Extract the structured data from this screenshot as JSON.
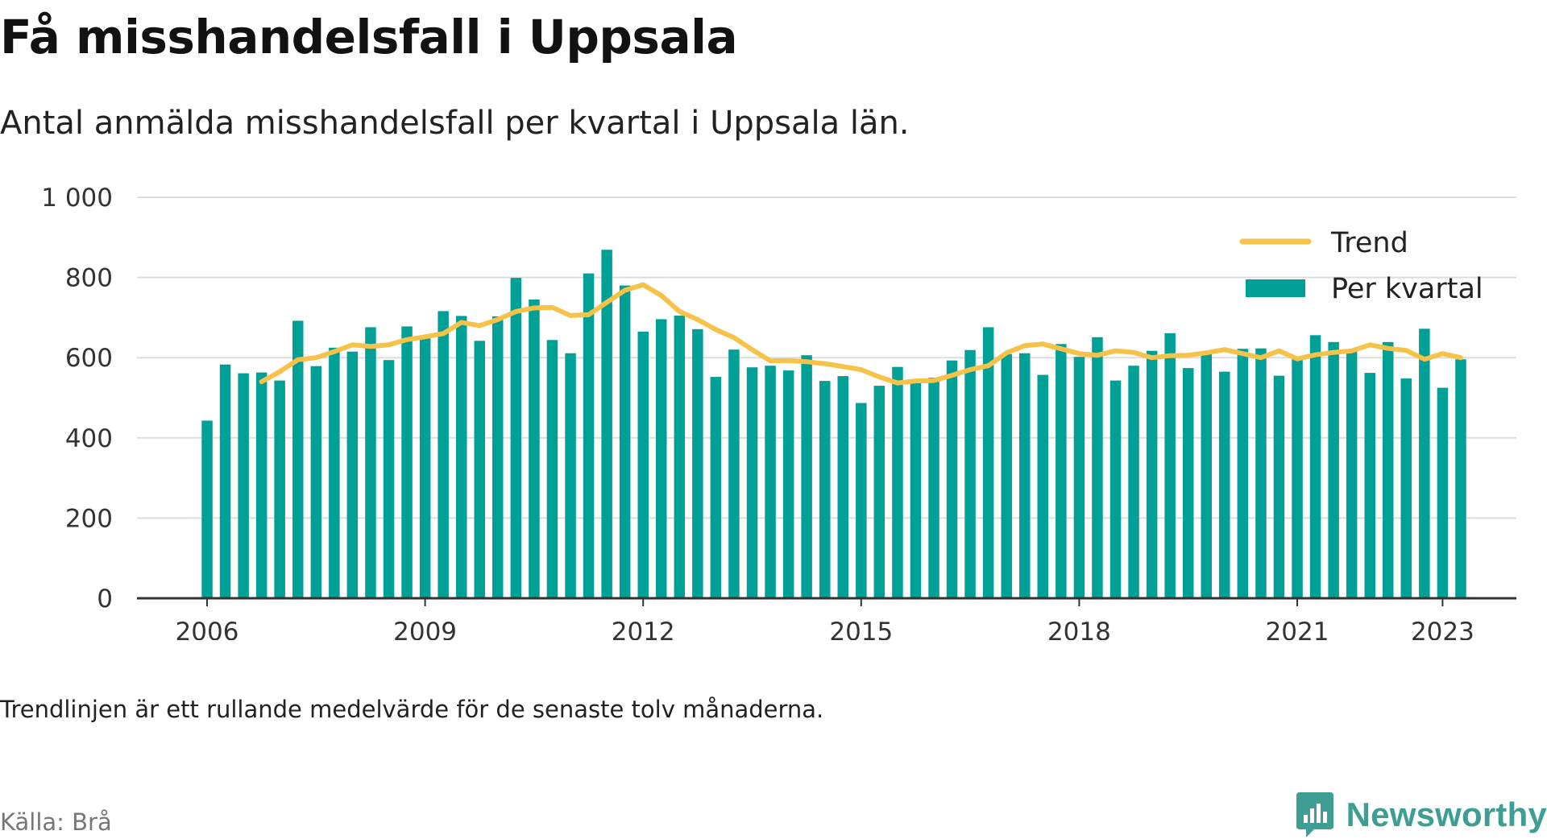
{
  "title": "Få misshandelsfall i Uppsala",
  "subtitle": "Antal anmälda misshandelsfall per kvartal i Uppsala län.",
  "note": "Trendlinjen är ett rullande medelvärde för de senaste tolv månaderna.",
  "source": "Källa: Brå",
  "brand": "Newsworthy",
  "colors": {
    "bars": "#00a096",
    "trend": "#f7c24a",
    "grid": "#dddddd",
    "axis": "#333333",
    "brand": "#3e9e93"
  },
  "chart_data": {
    "type": "bar",
    "title": "Få misshandelsfall i Uppsala",
    "xlabel": "",
    "ylabel": "",
    "ylim": [
      0,
      1000
    ],
    "y_ticks": [
      0,
      200,
      400,
      600,
      800,
      1000
    ],
    "y_tick_labels": [
      "0",
      "200",
      "400",
      "600",
      "800",
      "1 000"
    ],
    "x_ticks": [
      2006,
      2009,
      2012,
      2015,
      2018,
      2021,
      2023
    ],
    "x_tick_labels": [
      "2006",
      "2009",
      "2012",
      "2015",
      "2018",
      "2021",
      "2023"
    ],
    "grid": true,
    "legend_position": "top-right",
    "series": [
      {
        "name": "Per kvartal",
        "type": "bar",
        "x": [
          "2006 K1",
          "2006 K2",
          "2006 K3",
          "2006 K4",
          "2007 K1",
          "2007 K2",
          "2007 K3",
          "2007 K4",
          "2008 K1",
          "2008 K2",
          "2008 K3",
          "2008 K4",
          "2009 K1",
          "2009 K2",
          "2009 K3",
          "2009 K4",
          "2010 K1",
          "2010 K2",
          "2010 K3",
          "2010 K4",
          "2011 K1",
          "2011 K2",
          "2011 K3",
          "2011 K4",
          "2012 K1",
          "2012 K2",
          "2012 K3",
          "2012 K4",
          "2013 K1",
          "2013 K2",
          "2013 K3",
          "2013 K4",
          "2014 K1",
          "2014 K2",
          "2014 K3",
          "2014 K4",
          "2015 K1",
          "2015 K2",
          "2015 K3",
          "2015 K4",
          "2016 K1",
          "2016 K2",
          "2016 K3",
          "2016 K4",
          "2017 K1",
          "2017 K2",
          "2017 K3",
          "2017 K4",
          "2018 K1",
          "2018 K2",
          "2018 K3",
          "2018 K4",
          "2019 K1",
          "2019 K2",
          "2019 K3",
          "2019 K4",
          "2020 K1",
          "2020 K2",
          "2020 K3",
          "2020 K4",
          "2021 K1",
          "2021 K2",
          "2021 K3",
          "2021 K4",
          "2022 K1",
          "2022 K2",
          "2022 K3",
          "2022 K4",
          "2023 K1",
          "2023 K2"
        ],
        "values": [
          443,
          583,
          561,
          563,
          543,
          692,
          579,
          625,
          615,
          676,
          594,
          678,
          652,
          716,
          704,
          642,
          703,
          799,
          745,
          644,
          611,
          810,
          869,
          780,
          665,
          696,
          705,
          671,
          552,
          620,
          576,
          580,
          568,
          606,
          542,
          554,
          487,
          530,
          577,
          540,
          550,
          593,
          619,
          676,
          609,
          611,
          557,
          634,
          602,
          651,
          543,
          580,
          617,
          661,
          574,
          613,
          565,
          622,
          623,
          555,
          600,
          656,
          639,
          616,
          562,
          639,
          548,
          672,
          525,
          596
        ]
      },
      {
        "name": "Trend",
        "type": "line",
        "x": [
          "2006 K4",
          "2007 K1",
          "2007 K2",
          "2007 K3",
          "2007 K4",
          "2008 K1",
          "2008 K2",
          "2008 K3",
          "2008 K4",
          "2009 K1",
          "2009 K2",
          "2009 K3",
          "2009 K4",
          "2010 K1",
          "2010 K2",
          "2010 K3",
          "2010 K4",
          "2011 K1",
          "2011 K2",
          "2011 K3",
          "2011 K4",
          "2012 K1",
          "2012 K2",
          "2012 K3",
          "2012 K4",
          "2013 K1",
          "2013 K2",
          "2013 K3",
          "2013 K4",
          "2014 K1",
          "2014 K2",
          "2014 K3",
          "2014 K4",
          "2015 K1",
          "2015 K2",
          "2015 K3",
          "2015 K4",
          "2016 K1",
          "2016 K2",
          "2016 K3",
          "2016 K4",
          "2017 K1",
          "2017 K2",
          "2017 K3",
          "2017 K4",
          "2018 K1",
          "2018 K2",
          "2018 K3",
          "2018 K4",
          "2019 K1",
          "2019 K2",
          "2019 K3",
          "2019 K4",
          "2020 K1",
          "2020 K2",
          "2020 K3",
          "2020 K4",
          "2021 K1",
          "2021 K2",
          "2021 K3",
          "2021 K4",
          "2022 K1",
          "2022 K2",
          "2022 K3",
          "2022 K4",
          "2023 K1",
          "2023 K2"
        ],
        "values": [
          540,
          565,
          595,
          600,
          615,
          632,
          628,
          632,
          645,
          652,
          660,
          688,
          680,
          695,
          715,
          724,
          725,
          705,
          707,
          738,
          768,
          782,
          755,
          715,
          695,
          670,
          650,
          620,
          592,
          593,
          590,
          585,
          578,
          570,
          552,
          537,
          542,
          543,
          556,
          570,
          580,
          612,
          630,
          634,
          622,
          610,
          606,
          617,
          613,
          600,
          605,
          606,
          612,
          620,
          610,
          600,
          617,
          597,
          607,
          613,
          617,
          632,
          623,
          618,
          596,
          610,
          600
        ]
      }
    ]
  }
}
